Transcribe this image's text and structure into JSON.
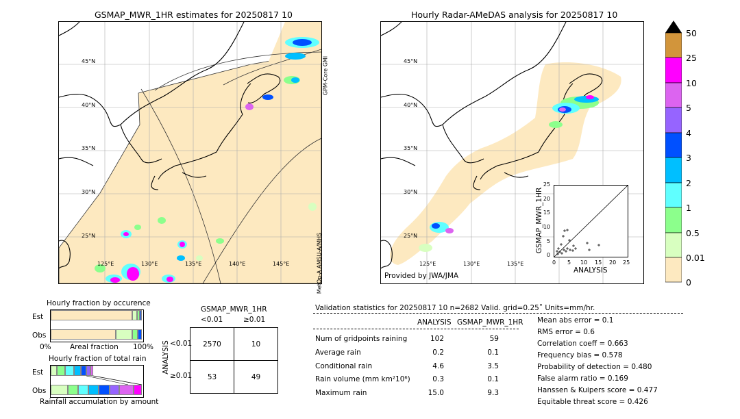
{
  "left_panel": {
    "title": "GSMAP_MWR_1HR estimates for 20250817 10",
    "lat_labels": [
      "45°N",
      "40°N",
      "35°N",
      "30°N",
      "25°N"
    ],
    "lon_labels": [
      "125°E",
      "130°E",
      "135°E",
      "140°E",
      "145°E"
    ],
    "swath_labels": [
      "GPM-Core GMI",
      "MetOp-A AMSU-A/MHS"
    ]
  },
  "right_panel": {
    "title": "Hourly Radar-AMeDAS analysis for 20250817 10",
    "lat_labels": [
      "45°N",
      "40°N",
      "35°N",
      "30°N",
      "25°N"
    ],
    "lon_labels": [
      "125°E",
      "130°E",
      "135°E"
    ],
    "provider": "Provided by JWA/JMA",
    "scatter": {
      "xlabel": "ANALYSIS",
      "ylabel": "GSMAP_MWR_1HR",
      "ticks": [
        "0",
        "5",
        "10",
        "15",
        "20",
        "25"
      ]
    }
  },
  "colorbar": {
    "labels": [
      "50",
      "25",
      "10",
      "5",
      "4",
      "3",
      "2",
      "1",
      "0.5",
      "0.01",
      "0"
    ],
    "colors": [
      "#000000",
      "#d2953b",
      "#ff00ff",
      "#dc64f0",
      "#9664ff",
      "#0050ff",
      "#00bfff",
      "#60ffff",
      "#8cff8c",
      "#d8ffc0",
      "#fde9c0"
    ]
  },
  "occurrence": {
    "title": "Hourly fraction by occurence",
    "rows": [
      "Est",
      "Obs"
    ],
    "axis_left": "0%",
    "axis_mid": "Areal fraction",
    "axis_right": "100%"
  },
  "total_rain": {
    "title": "Hourly fraction of total rain",
    "rows": [
      "Est",
      "Obs"
    ],
    "axis_label": "Rainfall accumulation by amount"
  },
  "contingency": {
    "title": "GSMAP_MWR_1HR",
    "col_headers": [
      "<0.01",
      "≥0.01"
    ],
    "row_axis": "ANALYSIS",
    "row_headers": [
      "<0.01",
      "≥0.01"
    ],
    "cells": [
      [
        "2570",
        "10"
      ],
      [
        "53",
        "49"
      ]
    ]
  },
  "validation": {
    "header": "Validation statistics for 20250817 10  n=2682 Valid. grid=0.25˚ Units=mm/hr.",
    "col_analysis": "ANALYSIS",
    "col_gsmap": "GSMAP_MWR_1HR",
    "rows": [
      {
        "label": "Num of gridpoints raining",
        "analysis": "102",
        "gsmap": "59"
      },
      {
        "label": "Average rain",
        "analysis": "0.2",
        "gsmap": "0.1"
      },
      {
        "label": "Conditional rain",
        "analysis": "4.6",
        "gsmap": "3.5"
      },
      {
        "label": "Rain volume (mm km²10⁶)",
        "analysis": "0.3",
        "gsmap": "0.1"
      },
      {
        "label": "Maximum rain",
        "analysis": "15.0",
        "gsmap": "9.3"
      }
    ],
    "scores": [
      "Mean abs error =    0.1",
      "RMS error =    0.6",
      "Correlation coeff =  0.663",
      "Frequency bias =  0.578",
      "Probability of detection =  0.480",
      "False alarm ratio =  0.169",
      "Hanssen & Kuipers score =  0.477",
      "Equitable threat score =  0.426"
    ]
  }
}
